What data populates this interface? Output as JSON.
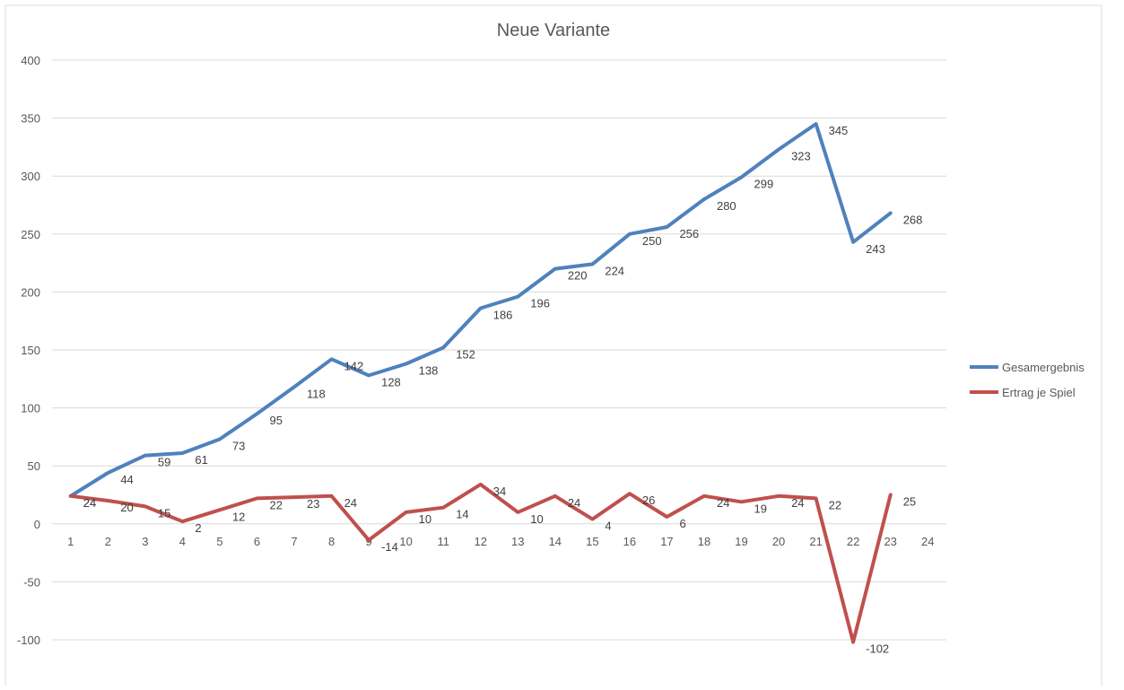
{
  "chart_data": {
    "type": "line",
    "title": "Neue Variante",
    "xlabel": "",
    "ylabel": "",
    "x_categories": [
      "1",
      "2",
      "3",
      "4",
      "5",
      "6",
      "7",
      "8",
      "9",
      "10",
      "11",
      "12",
      "13",
      "14",
      "15",
      "16",
      "17",
      "18",
      "19",
      "20",
      "21",
      "22",
      "23",
      "24"
    ],
    "y_ticks": [
      400,
      350,
      300,
      250,
      200,
      150,
      100,
      50,
      0,
      -50,
      -100
    ],
    "ylim": [
      -100,
      400
    ],
    "grid": true,
    "legend_position": "right",
    "series": [
      {
        "name": "Gesamergebnis",
        "color": "#4F81BD",
        "values": [
          24,
          44,
          59,
          61,
          73,
          95,
          118,
          142,
          128,
          138,
          152,
          186,
          196,
          220,
          224,
          250,
          256,
          280,
          299,
          323,
          345,
          243,
          268
        ]
      },
      {
        "name": "Ertrag je Spiel",
        "color": "#C0504D",
        "values": [
          24,
          20,
          15,
          2,
          12,
          22,
          23,
          24,
          -14,
          10,
          14,
          34,
          10,
          24,
          4,
          26,
          6,
          24,
          19,
          24,
          22,
          -102,
          25
        ]
      }
    ]
  }
}
